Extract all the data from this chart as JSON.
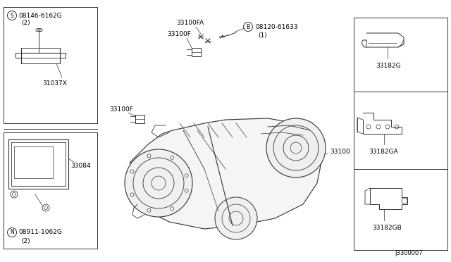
{
  "bg_color": "#ffffff",
  "line_color": "#333333",
  "text_color": "#000000",
  "figure_width": 6.4,
  "figure_height": 3.72,
  "dpi": 100,
  "part_number_footer": "J3300007",
  "labels": {
    "part1_circle": "S",
    "part1": "08146-6162G",
    "part1_qty": "(2)",
    "part1_ref": "31037X",
    "part2": "33084",
    "part3_circle": "N",
    "part3_label": "08911-1062G",
    "part3_qty": "(2)",
    "center_top_fa": "33100FA",
    "center_top_f": "33100F",
    "B_circle": "B",
    "part_B": "08120-61633",
    "part_B_qty": "(1)",
    "center_left_f": "33100F",
    "center_main": "33100",
    "right1": "33182G",
    "right2": "33182GA",
    "right3": "33182GB"
  }
}
